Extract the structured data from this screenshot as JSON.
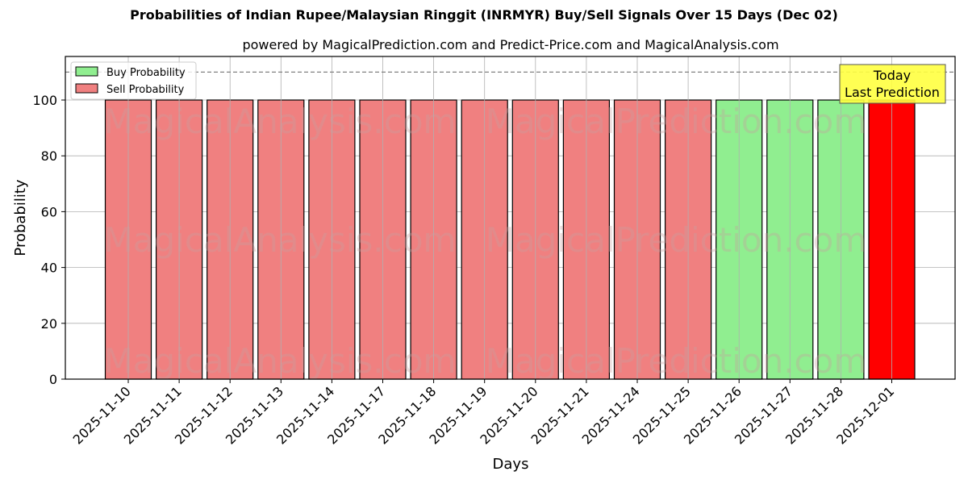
{
  "title": "Probabilities of Indian Rupee/Malaysian Ringgit (INRMYR) Buy/Sell Signals Over 15 Days (Dec 02)",
  "subtitle": "powered by MagicalPrediction.com and Predict-Price.com and MagicalAnalysis.com",
  "xlabel": "Days",
  "ylabel": "Probability",
  "legend": {
    "buy_label": "Buy Probability",
    "sell_label": "Sell Probability",
    "buy_color": "#90ee90",
    "sell_color": "#f08080"
  },
  "annotation": {
    "line1": "Today",
    "line2": "Last Prediction",
    "bg_color": "#ffff40"
  },
  "watermarks": [
    "MagicalAnalysis.com",
    "MagicalPrediction.com"
  ],
  "chart_data": {
    "type": "bar",
    "title": "Probabilities of Indian Rupee/Malaysian Ringgit (INRMYR) Buy/Sell Signals Over 15 Days (Dec 02)",
    "subtitle": "powered by MagicalPrediction.com and Predict-Price.com and MagicalAnalysis.com",
    "xlabel": "Days",
    "ylabel": "Probability",
    "ylim": [
      0,
      115
    ],
    "yticks": [
      0,
      20,
      40,
      60,
      80,
      100
    ],
    "grid": true,
    "legend_position": "upper left",
    "reference_line": {
      "y": 110,
      "style": "dashed",
      "color": "#808080"
    },
    "categories": [
      "2025-11-10",
      "2025-11-11",
      "2025-11-12",
      "2025-11-13",
      "2025-11-14",
      "2025-11-17",
      "2025-11-18",
      "2025-11-19",
      "2025-11-20",
      "2025-11-21",
      "2025-11-24",
      "2025-11-25",
      "2025-11-26",
      "2025-11-27",
      "2025-11-28",
      "2025-12-01"
    ],
    "series": [
      {
        "name": "Buy Probability",
        "color": "#90ee90",
        "values": [
          0,
          0,
          0,
          0,
          0,
          0,
          0,
          0,
          0,
          0,
          0,
          0,
          100,
          100,
          100,
          0
        ]
      },
      {
        "name": "Sell Probability",
        "color": "#f08080",
        "values": [
          100,
          100,
          100,
          100,
          100,
          100,
          100,
          100,
          100,
          100,
          100,
          100,
          0,
          0,
          0,
          100
        ]
      }
    ],
    "bar_signals": [
      "Sell",
      "Sell",
      "Sell",
      "Sell",
      "Sell",
      "Sell",
      "Sell",
      "Sell",
      "Sell",
      "Sell",
      "Sell",
      "Sell",
      "Buy",
      "Buy",
      "Buy",
      "Sell"
    ],
    "bar_colors": [
      "#f08080",
      "#f08080",
      "#f08080",
      "#f08080",
      "#f08080",
      "#f08080",
      "#f08080",
      "#f08080",
      "#f08080",
      "#f08080",
      "#f08080",
      "#f08080",
      "#90ee90",
      "#90ee90",
      "#90ee90",
      "#ff0000"
    ],
    "highlight": {
      "index": 15,
      "label": "Today Last Prediction",
      "color": "#ff0000"
    }
  }
}
